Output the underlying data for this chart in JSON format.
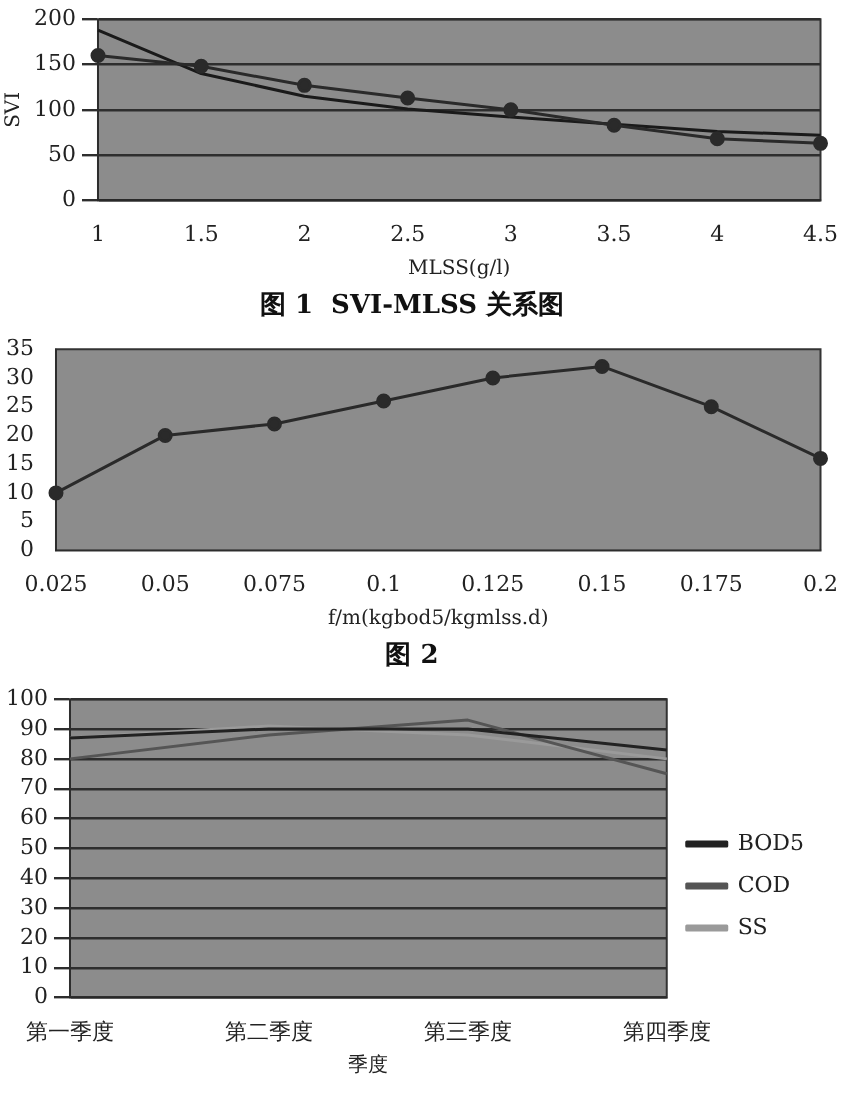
{
  "chart_data": [
    {
      "type": "line",
      "title": "图 1  SVI-MLSS 关系图",
      "xlabel": "MLSS(g/l)",
      "ylabel": "SVI",
      "categories": [
        "1",
        "1.5",
        "2",
        "2.5",
        "3",
        "3.5",
        "4",
        "4.5"
      ],
      "series": [
        {
          "color": "#2a2a2a",
          "marker": "circle",
          "values": [
            160,
            148,
            127,
            113,
            100,
            83,
            68,
            63
          ]
        },
        {
          "color": "#1a1a1a",
          "marker": "none",
          "values": [
            188,
            140,
            115,
            101,
            92,
            84,
            76,
            72
          ]
        }
      ],
      "ylim": [
        0,
        200
      ],
      "yticks": [
        0,
        50,
        100,
        150,
        200
      ],
      "grid": "y"
    },
    {
      "type": "line",
      "title": "图 2",
      "xlabel": "f/m(kgbod5/kgmlss.d)",
      "categories": [
        "0.025",
        "0.05",
        "0.075",
        "0.1",
        "0.125",
        "0.15",
        "0.175",
        "0.2"
      ],
      "series": [
        {
          "color": "#2a2a2a",
          "values": [
            10,
            20,
            22,
            26,
            30,
            32,
            25,
            16
          ]
        }
      ],
      "marker": "circle",
      "ylim": [
        0,
        35
      ],
      "yticks": [
        0,
        5,
        10,
        15,
        20,
        25,
        30,
        35
      ]
    },
    {
      "type": "line",
      "xlabel": "季度",
      "categories": [
        "第一季度",
        "第二季度",
        "第三季度",
        "第四季度"
      ],
      "series": [
        {
          "name": "BOD5",
          "color": "#222222",
          "values": [
            87,
            90,
            90,
            83
          ]
        },
        {
          "name": "COD",
          "color": "#555555",
          "values": [
            80,
            88,
            93,
            75
          ]
        },
        {
          "name": "SS",
          "color": "#9a9a9a",
          "values": [
            87,
            91,
            88,
            80
          ]
        }
      ],
      "ylim": [
        0,
        100
      ],
      "yticks": [
        0,
        10,
        20,
        30,
        40,
        50,
        60,
        70,
        80,
        90,
        100
      ],
      "grid": "y",
      "legend": "right"
    }
  ]
}
